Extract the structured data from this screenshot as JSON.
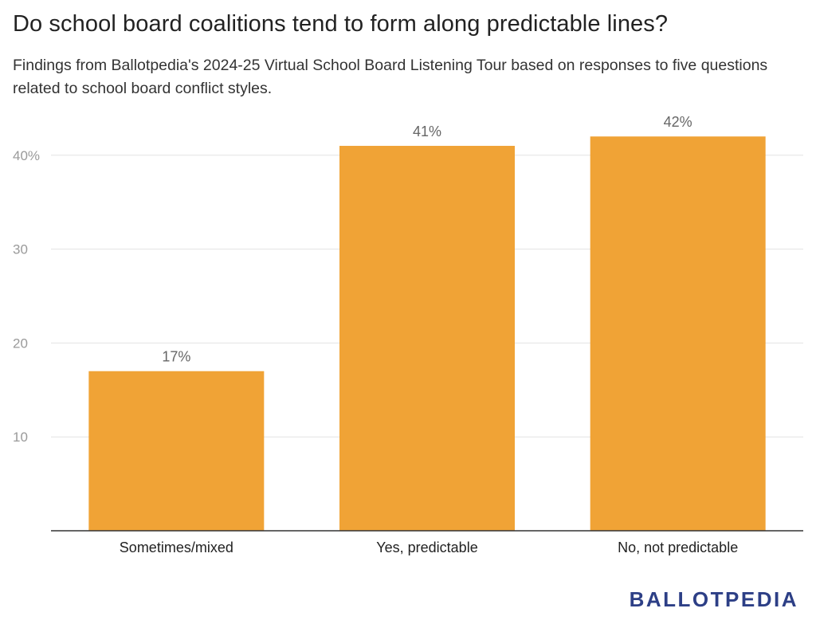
{
  "colors": {
    "bar": "#f0a336",
    "grid": "#e2e2e2",
    "axis": "#333333",
    "brand": "#2d3f86"
  },
  "brand": {
    "logo_text": "BALLOTPEDIA"
  },
  "chart_data": {
    "type": "bar",
    "title": "Do school board coalitions tend to form along predictable lines?",
    "subtitle": "Findings from Ballotpedia's 2024-25 Virtual School Board Listening Tour based on responses to five questions related to school board conflict styles.",
    "categories": [
      "Sometimes/mixed",
      "Yes, predictable",
      "No, not predictable"
    ],
    "values": [
      17,
      41,
      42
    ],
    "data_labels": [
      "17%",
      "41%",
      "42%"
    ],
    "ylim": [
      0,
      42
    ],
    "yticks": [
      10,
      20,
      30,
      40
    ],
    "ytick_labels": [
      "10",
      "20",
      "30",
      "40%"
    ],
    "grid": true,
    "xlabel": "",
    "ylabel": ""
  }
}
